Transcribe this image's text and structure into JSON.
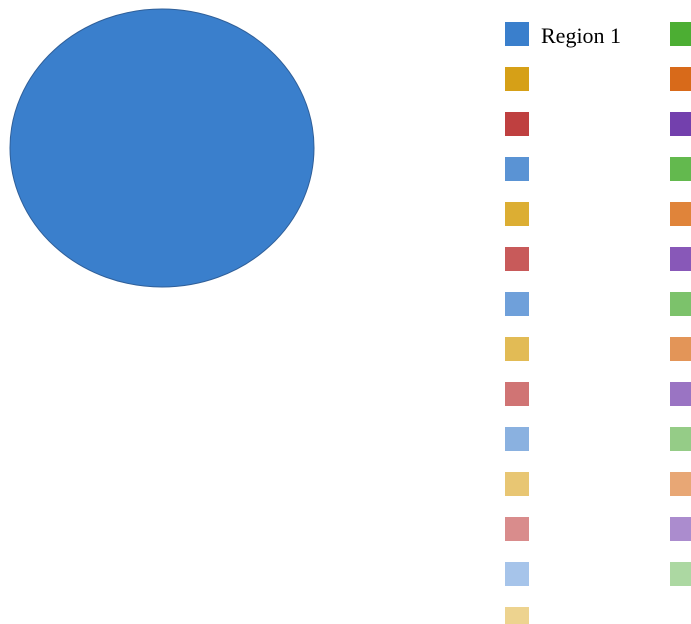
{
  "chart_data": {
    "type": "pie",
    "categories": [
      "Region 1",
      null,
      null,
      null,
      null,
      null,
      null,
      null,
      null,
      null,
      null,
      null,
      null,
      null,
      null,
      null,
      null,
      null,
      null,
      null,
      null,
      null,
      null,
      null,
      null,
      null,
      null
    ],
    "values": [
      100,
      0,
      0,
      0,
      0,
      0,
      0,
      0,
      0,
      0,
      0,
      0,
      0,
      0,
      0,
      0,
      0,
      0,
      0,
      0,
      0,
      0,
      0,
      0,
      0,
      0,
      0
    ],
    "colors": [
      "#3a7fcc",
      "#4cae33",
      "#d6a017",
      "#d86a1a",
      "#bf4040",
      "#7340ad",
      "#5a93d4",
      "#63b94e",
      "#dcae33",
      "#e0843a",
      "#c85a5a",
      "#8858b8",
      "#6fa0da",
      "#7cc26b",
      "#e2bb55",
      "#e39558",
      "#d07474",
      "#9a74c3",
      "#8ab1e0",
      "#95cc87",
      "#e8c673",
      "#e8a775",
      "#d98c8c",
      "#ab8cce",
      "#a6c4ea",
      "#acd8a2",
      "#edd38f"
    ],
    "legend": "right"
  }
}
